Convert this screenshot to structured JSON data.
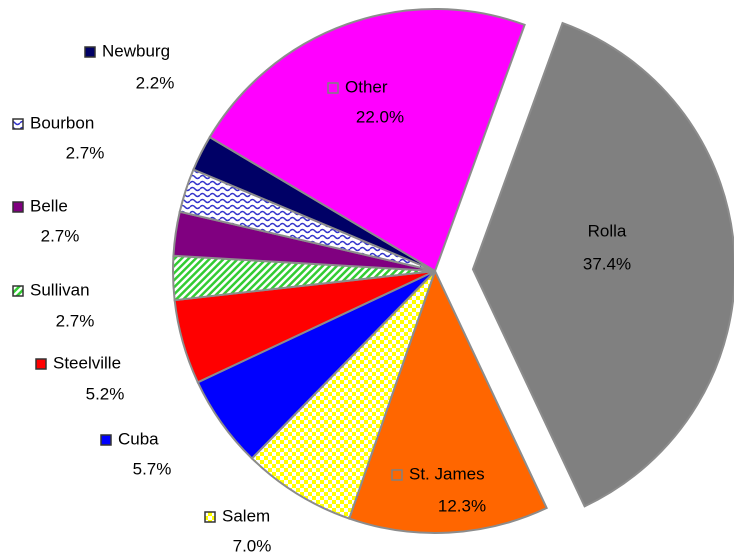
{
  "chart_data": {
    "type": "pie",
    "categories": [
      "Rolla",
      "St. James",
      "Salem",
      "Cuba",
      "Steelville",
      "Sullivan",
      "Belle",
      "Bourbon",
      "Newburg",
      "Other"
    ],
    "values": [
      37.4,
      12.3,
      7.0,
      5.7,
      5.2,
      2.7,
      2.7,
      2.7,
      2.2,
      22.0
    ],
    "value_labels": [
      "37.4%",
      "12.3%",
      "7.0%",
      "5.7%",
      "5.2%",
      "2.7%",
      "2.7%",
      "2.7%",
      "2.2%",
      "22.0%"
    ],
    "colors": [
      "#808080",
      "#ff6600",
      "#ffff00",
      "#0000ff",
      "#ff0000",
      "#33cc33",
      "#800080",
      "#3333cc",
      "#000066",
      "#ff00ff"
    ],
    "patterns": [
      null,
      null,
      "checker",
      null,
      null,
      "diagonal",
      null,
      "wave",
      null,
      null
    ],
    "exploded": "Rolla"
  }
}
